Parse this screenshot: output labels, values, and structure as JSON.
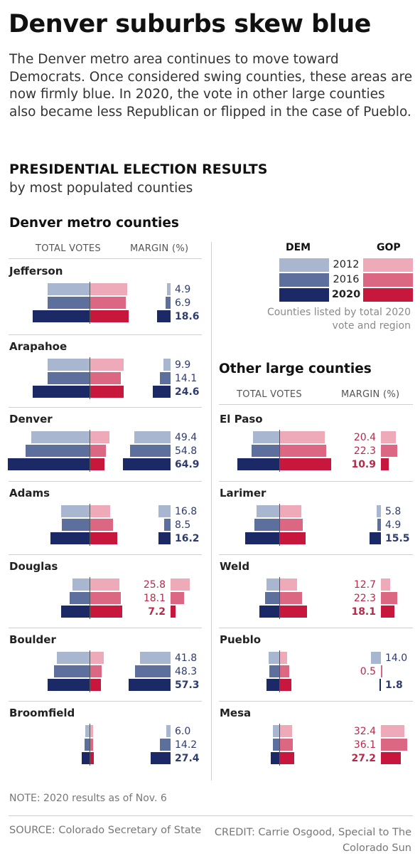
{
  "title": "Denver suburbs skew blue",
  "intro": "The Denver metro area continues to move toward Democrats. Once considered swing counties, these areas are now firmly blue. In 2020, the vote in other large counties also became less Republican or flipped in the case of Pueblo.",
  "section_title": "PRESIDENTIAL ELECTION RESULTS",
  "section_subtitle": "by most populated counties",
  "legend": {
    "dem_label": "DEM",
    "gop_label": "GOP",
    "years": [
      "2012",
      "2016",
      "2020"
    ],
    "note": "Counties listed by total 2020 vote and region"
  },
  "colors": {
    "dem": [
      "#a8b6d0",
      "#5d6f9c",
      "#1b2a66"
    ],
    "gop": [
      "#efaab9",
      "#dc6782",
      "#c8173c"
    ],
    "dem_text": "#2e3c6f",
    "gop_text": "#b72a4a"
  },
  "chart_data": {
    "type": "bar",
    "series_years": [
      "2012",
      "2016",
      "2020"
    ],
    "groups": [
      {
        "name": "Denver metro counties",
        "total_votes_header": "TOTAL VOTES",
        "margin_header": "MARGIN (%)",
        "counties": [
          {
            "name": "Jefferson",
            "dem_votes": [
              160000,
              160000,
              218000
            ],
            "gop_votes": [
              145000,
              140000,
              150000
            ],
            "margin": [
              4.9,
              6.9,
              18.6
            ],
            "margin_labels": [
              "4.9",
              "6.9",
              "18.6"
            ],
            "winner": [
              "dem",
              "dem",
              "dem"
            ]
          },
          {
            "name": "Arapahoe",
            "dem_votes": [
              160000,
              160000,
              218000
            ],
            "gop_votes": [
              130000,
              120000,
              130000
            ],
            "margin": [
              9.9,
              14.1,
              24.6
            ],
            "margin_labels": [
              "9.9",
              "14.1",
              "24.6"
            ],
            "winner": [
              "dem",
              "dem",
              "dem"
            ]
          },
          {
            "name": "Denver",
            "dem_votes": [
              222000,
              244000,
              313000
            ],
            "gop_votes": [
              75000,
              62000,
              56000
            ],
            "margin": [
              49.4,
              54.8,
              64.9
            ],
            "margin_labels": [
              "49.4",
              "54.8",
              "64.9"
            ],
            "winner": [
              "dem",
              "dem",
              "dem"
            ]
          },
          {
            "name": "Adams",
            "dem_votes": [
              110000,
              105000,
              150000
            ],
            "gop_votes": [
              80000,
              90000,
              105000
            ],
            "margin": [
              16.8,
              8.5,
              16.2
            ],
            "margin_labels": [
              "16.8",
              "8.5",
              "16.2"
            ],
            "winner": [
              "dem",
              "dem",
              "dem"
            ]
          },
          {
            "name": "Douglas",
            "dem_votes": [
              65000,
              75000,
              110000
            ],
            "gop_votes": [
              115000,
              120000,
              125000
            ],
            "margin": [
              25.8,
              18.1,
              7.2
            ],
            "margin_labels": [
              "25.8",
              "18.1",
              "7.2"
            ],
            "winner": [
              "gop",
              "gop",
              "gop"
            ]
          },
          {
            "name": "Boulder",
            "dem_votes": [
              125000,
              135000,
              160000
            ],
            "gop_votes": [
              55000,
              46000,
              43000
            ],
            "margin": [
              41.8,
              48.3,
              57.3
            ],
            "margin_labels": [
              "41.8",
              "48.3",
              "57.3"
            ],
            "winner": [
              "dem",
              "dem",
              "dem"
            ]
          },
          {
            "name": "Broomfield",
            "dem_votes": [
              15000,
              19000,
              30000
            ],
            "gop_votes": [
              13000,
              13000,
              17000
            ],
            "margin": [
              6.0,
              14.2,
              27.4
            ],
            "margin_labels": [
              "6.0",
              "14.2",
              "27.4"
            ],
            "winner": [
              "dem",
              "dem",
              "dem"
            ]
          }
        ]
      },
      {
        "name": "Other large counties",
        "total_votes_header": "TOTAL VOTES",
        "margin_header": "MARGIN (%)",
        "counties": [
          {
            "name": "El Paso",
            "dem_votes": [
              100000,
              105000,
              160000
            ],
            "gop_votes": [
              175000,
              180000,
              200000
            ],
            "margin": [
              20.4,
              22.3,
              10.9
            ],
            "margin_labels": [
              "20.4",
              "22.3",
              "10.9"
            ],
            "winner": [
              "gop",
              "gop",
              "gop"
            ]
          },
          {
            "name": "Larimer",
            "dem_votes": [
              87000,
              95000,
              130000
            ],
            "gop_votes": [
              85000,
              90000,
              100000
            ],
            "margin": [
              5.8,
              4.9,
              15.5
            ],
            "margin_labels": [
              "5.8",
              "4.9",
              "15.5"
            ],
            "winner": [
              "dem",
              "dem",
              "dem"
            ]
          },
          {
            "name": "Weld",
            "dem_votes": [
              50000,
              55000,
              76000
            ],
            "gop_votes": [
              67000,
              87000,
              106000
            ],
            "margin": [
              12.7,
              22.3,
              18.1
            ],
            "margin_labels": [
              "12.7",
              "22.3",
              "18.1"
            ],
            "winner": [
              "gop",
              "gop",
              "gop"
            ]
          },
          {
            "name": "Pueblo",
            "dem_votes": [
              40000,
              38000,
              48000
            ],
            "gop_votes": [
              30000,
              38000,
              46000
            ],
            "margin": [
              14.0,
              0.5,
              1.8
            ],
            "margin_labels": [
              "14.0",
              "0.5",
              "1.8"
            ],
            "winner": [
              "dem",
              "gop",
              "dem"
            ]
          },
          {
            "name": "Mesa",
            "dem_votes": [
              25000,
              24000,
              32000
            ],
            "gop_votes": [
              48000,
              52000,
              56000
            ],
            "margin": [
              32.4,
              36.1,
              27.2
            ],
            "margin_labels": [
              "32.4",
              "36.1",
              "27.2"
            ],
            "winner": [
              "gop",
              "gop",
              "gop"
            ]
          }
        ]
      }
    ]
  },
  "note": "NOTE: 2020 results as of Nov. 6",
  "source": "SOURCE: Colorado Secretary of State",
  "credit": "CREDIT: Carrie Osgood, Special to The Colorado Sun"
}
